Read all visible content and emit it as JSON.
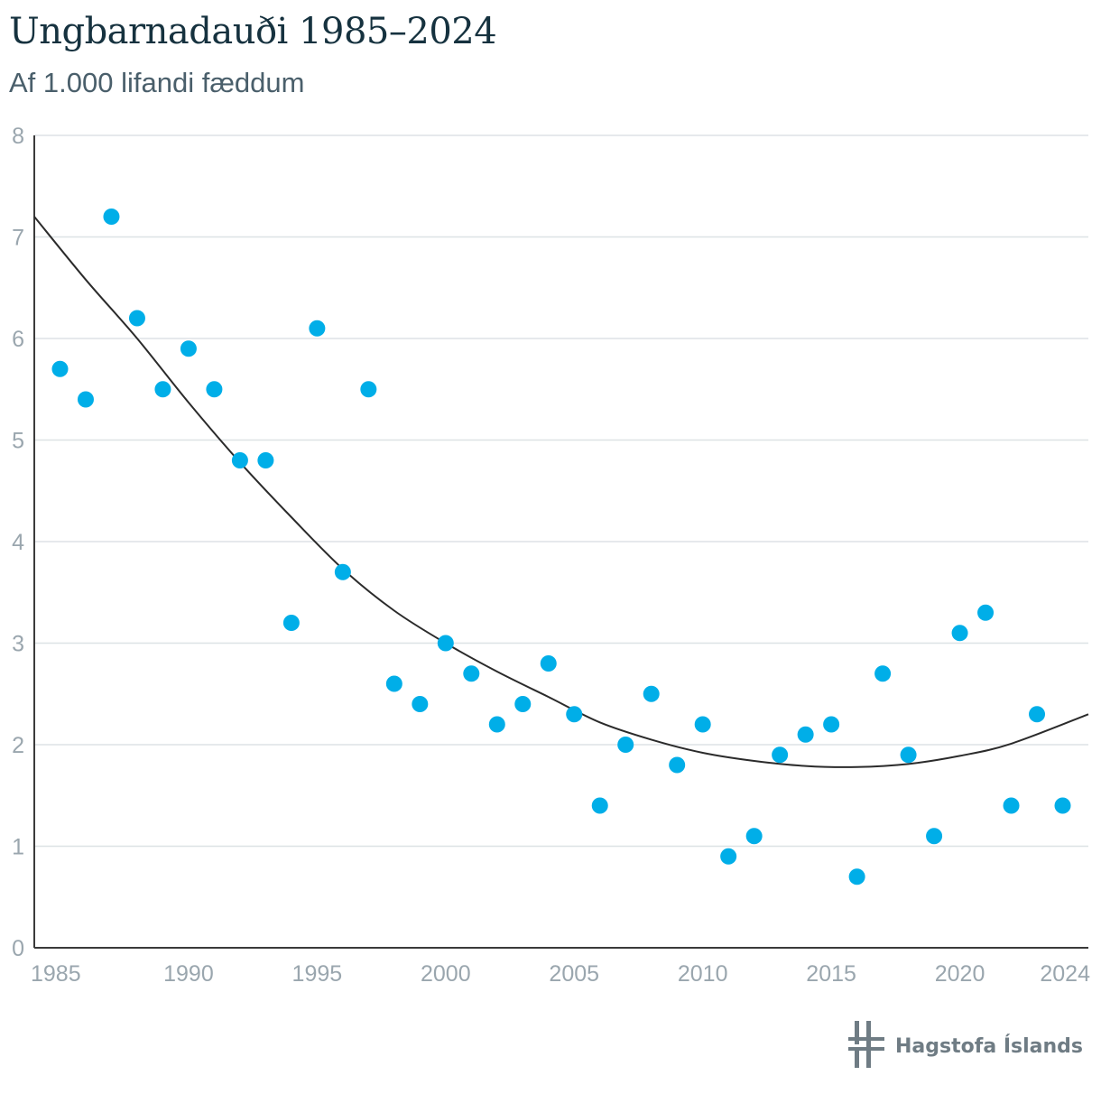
{
  "chart_data": {
    "type": "scatter",
    "title": "Ungbarnadauði 1985–2024",
    "subtitle": "Af 1.000 lifandi fæddum",
    "xlabel": "",
    "ylabel": "",
    "xlim": [
      1984,
      2025
    ],
    "ylim": [
      0,
      8
    ],
    "x_ticks": [
      "1985",
      "1990",
      "1995",
      "2000",
      "2005",
      "2010",
      "2015",
      "2020",
      "2024"
    ],
    "y_ticks": [
      "0",
      "1",
      "2",
      "3",
      "4",
      "5",
      "6",
      "7",
      "8"
    ],
    "grid": true,
    "series": [
      {
        "name": "Ungbarnadauði",
        "color": "#00aee8",
        "x": [
          1985,
          1986,
          1987,
          1988,
          1989,
          1990,
          1991,
          1992,
          1993,
          1994,
          1995,
          1996,
          1997,
          1998,
          1999,
          2000,
          2001,
          2002,
          2003,
          2004,
          2005,
          2006,
          2007,
          2008,
          2009,
          2010,
          2011,
          2012,
          2013,
          2014,
          2015,
          2016,
          2017,
          2018,
          2019,
          2020,
          2021,
          2022,
          2023,
          2024
        ],
        "values": [
          5.7,
          5.4,
          7.2,
          6.2,
          5.5,
          5.9,
          5.5,
          4.8,
          4.8,
          3.2,
          6.1,
          3.7,
          5.5,
          2.6,
          2.4,
          3.0,
          2.7,
          2.2,
          2.4,
          2.8,
          2.3,
          1.4,
          2.0,
          2.5,
          1.8,
          2.2,
          0.9,
          1.1,
          1.9,
          2.1,
          2.2,
          0.7,
          2.7,
          1.9,
          1.1,
          3.1,
          3.3,
          1.4,
          2.3,
          1.4
        ]
      }
    ],
    "trendline": {
      "type": "quadratic",
      "color": "#2b2b2b",
      "x": [
        1984,
        1986,
        1988,
        1990,
        1992,
        1994,
        1996,
        1998,
        2000,
        2002,
        2004,
        2006,
        2008,
        2010,
        2012,
        2014,
        2016,
        2018,
        2020,
        2022,
        2025
      ],
      "values": [
        7.2,
        6.58,
        6.0,
        5.37,
        4.78,
        4.24,
        3.73,
        3.32,
        3.0,
        2.72,
        2.47,
        2.22,
        2.05,
        1.92,
        1.84,
        1.79,
        1.78,
        1.81,
        1.89,
        2.01,
        2.3
      ]
    },
    "colors": {
      "grid": "#dde2e5",
      "axis": "#3a3a3a",
      "tick_text": "#9aa6ae"
    }
  },
  "logo": {
    "text": "Hagstofa Íslands",
    "icon": "hagstofa-logo-icon",
    "color": "#6f7c84"
  }
}
